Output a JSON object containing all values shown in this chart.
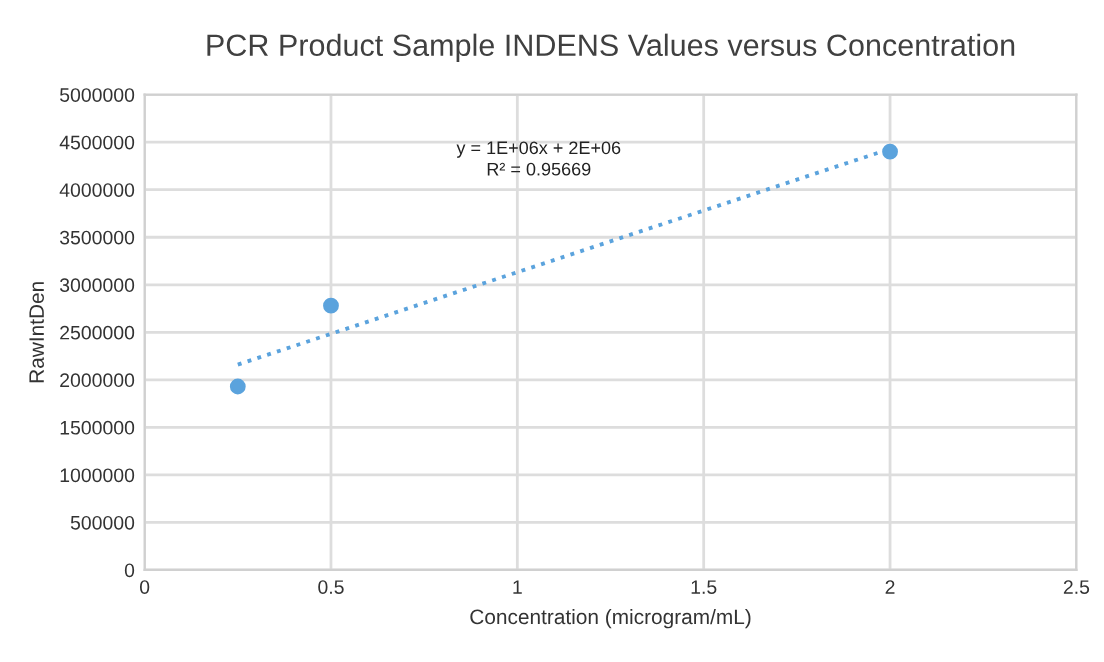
{
  "chart_data": {
    "type": "scatter",
    "title": "PCR Product Sample INDENS Values versus Concentration",
    "xlabel": "Concentration (microgram/mL)",
    "ylabel": "RawIntDen",
    "series": [
      {
        "color": "#5ba3dd",
        "x": [
          0.25,
          0.5,
          2
        ],
        "values": [
          1930000,
          2780000,
          4400000
        ],
        "marker": "circle"
      },
      {
        "type": "line",
        "color": "#5ba3dd",
        "x": [
          0.25,
          2
        ],
        "values": [
          2160000,
          4430000
        ],
        "line_style": "dotted",
        "marker": "none"
      }
    ],
    "annotations": [
      "y = 1E+06x + 2E+06",
      "R² = 0.95669"
    ],
    "xlim": [
      0,
      2.5
    ],
    "xticks": [
      0,
      0.5,
      1,
      1.5,
      2,
      2.5
    ],
    "ylim": [
      0,
      5000000
    ],
    "yticks": [
      0,
      500000,
      1000000,
      1500000,
      2000000,
      2500000,
      3000000,
      3500000,
      4000000,
      4500000,
      5000000
    ],
    "grid": true,
    "legend": false
  }
}
